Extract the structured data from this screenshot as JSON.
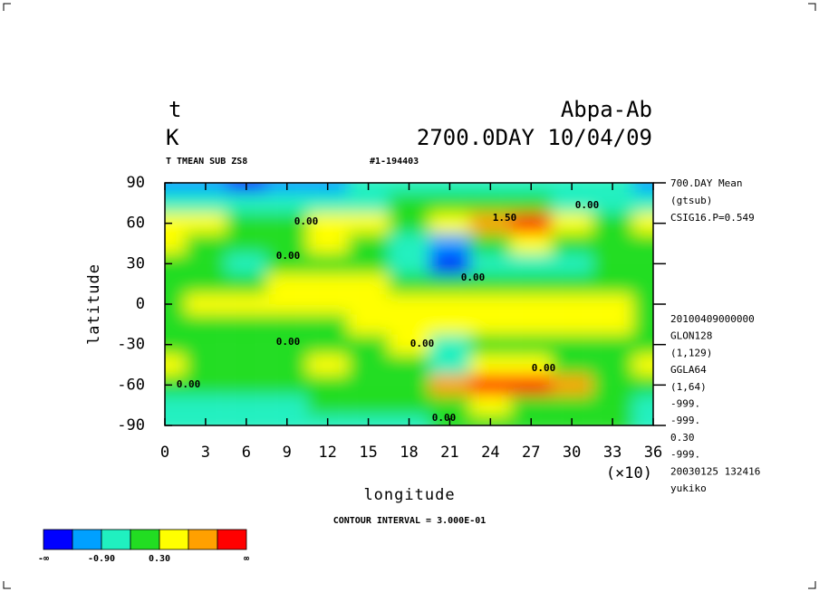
{
  "chart_data": {
    "type": "contour",
    "title_left": [
      "t",
      "K"
    ],
    "title_right": [
      "Abpa-Ab",
      "2700.0DAY 10/04/09"
    ],
    "subtitle_left": "T TMEAN SUB ZS8",
    "subtitle_mid": "#1-194403",
    "x_label": "longitude",
    "y_label": "latitude",
    "x_scale_note": "(×10)",
    "contour_interval": "CONTOUR INTERVAL = 3.000E-01",
    "side_top": [
      "700.DAY Mean",
      "(gtsub)",
      "CSIG16.P=0.549"
    ],
    "side_bottom": [
      "20100409000000",
      "GLON128",
      "(1,129)",
      "GGLA64",
      "(1,64)",
      "-999.",
      "-999.",
      "0.30",
      "-999.",
      "20030125 132416",
      "yukiko"
    ],
    "contour_labels": [
      "0.00",
      "1.50",
      "0.00",
      "0.00",
      "0.00",
      "0.00",
      "0.00",
      "0.00",
      "0.00",
      "0.00"
    ],
    "xlim": [
      0,
      36
    ],
    "xticks": [
      0,
      3,
      6,
      9,
      12,
      15,
      18,
      21,
      24,
      27,
      30,
      33,
      36
    ],
    "ylim": [
      -90,
      90
    ],
    "yticks": [
      -90,
      -60,
      -30,
      0,
      30,
      60,
      90
    ],
    "levels": [
      -1.5,
      -0.9,
      -0.3,
      0.3,
      0.9,
      1.5
    ],
    "colors": [
      "#0000ff",
      "#00a0ff",
      "#20f0c0",
      "#22dd22",
      "#ffff00",
      "#ffa000",
      "#ff0000"
    ],
    "colorbar_labels": [
      "-∞",
      null,
      "-0.90",
      null,
      "0.30",
      null,
      null,
      "∞"
    ],
    "field": {
      "lon": [
        0,
        3,
        6,
        9,
        12,
        15,
        18,
        21,
        24,
        27,
        30,
        33,
        36
      ],
      "lat": [
        90,
        75,
        60,
        45,
        30,
        15,
        0,
        -15,
        -30,
        -45,
        -60,
        -75,
        -90
      ],
      "values": [
        [
          -1.0,
          -1.2,
          -1.6,
          -1.2,
          -1.0,
          -0.9,
          -0.6,
          -0.5,
          -0.5,
          -0.5,
          -0.5,
          -0.5,
          -1.0
        ],
        [
          -0.6,
          -0.7,
          -0.8,
          -0.7,
          -0.6,
          -0.5,
          -0.2,
          -0.1,
          -0.2,
          -0.3,
          -0.5,
          -0.5,
          -0.6
        ],
        [
          0.4,
          0.7,
          0.2,
          0.0,
          0.6,
          0.7,
          0.0,
          0.8,
          1.3,
          1.9,
          0.8,
          0.0,
          0.4
        ],
        [
          0.3,
          0.2,
          0.0,
          0.0,
          0.4,
          0.2,
          -0.4,
          -1.2,
          0.2,
          0.5,
          -0.2,
          -0.2,
          0.2
        ],
        [
          0.1,
          0.0,
          -0.4,
          0.0,
          0.2,
          0.1,
          -0.4,
          -1.6,
          -0.4,
          -0.5,
          -0.4,
          0.0,
          0.1
        ],
        [
          0.0,
          0.1,
          0.2,
          0.4,
          0.3,
          0.3,
          0.2,
          -0.1,
          0.2,
          0.2,
          0.0,
          0.1,
          0.0
        ],
        [
          0.1,
          0.4,
          0.5,
          0.4,
          0.6,
          0.5,
          0.6,
          0.6,
          0.6,
          0.5,
          0.5,
          0.5,
          0.1
        ],
        [
          0.0,
          0.1,
          0.1,
          0.2,
          0.0,
          0.3,
          0.8,
          0.5,
          0.4,
          0.4,
          0.3,
          0.5,
          0.0
        ],
        [
          -0.1,
          0.0,
          -0.1,
          0.0,
          0.2,
          0.0,
          0.3,
          -0.4,
          0.0,
          0.0,
          -0.2,
          0.0,
          -0.1
        ],
        [
          0.4,
          0.0,
          -0.1,
          -0.2,
          0.5,
          0.0,
          0.0,
          -0.5,
          0.4,
          0.5,
          0.0,
          -0.1,
          0.4
        ],
        [
          -0.1,
          -0.2,
          -0.2,
          0.0,
          0.0,
          0.0,
          0.1,
          0.9,
          1.5,
          1.9,
          0.9,
          0.0,
          -0.1
        ],
        [
          -0.5,
          -0.4,
          -0.5,
          -0.4,
          -0.2,
          0.0,
          0.0,
          0.0,
          0.3,
          0.2,
          0.0,
          -0.1,
          -0.4
        ],
        [
          -0.5,
          -0.5,
          -0.5,
          -0.5,
          -0.4,
          -0.4,
          -0.4,
          -0.3,
          -0.3,
          -0.3,
          -0.3,
          -0.3,
          -0.5
        ]
      ]
    }
  }
}
